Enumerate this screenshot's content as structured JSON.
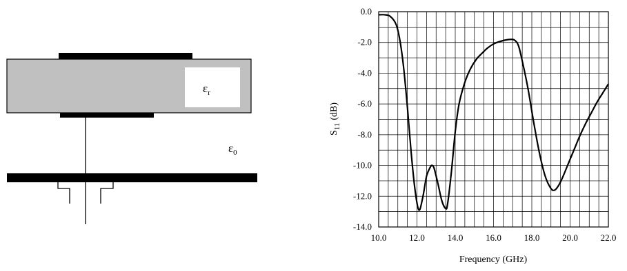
{
  "diagram": {
    "patch_permittivity_symbol": "ε",
    "patch_permittivity_subscript": "r",
    "free_space_symbol": "ε",
    "free_space_subscript": "0",
    "substrate_color": "#c0c0c0",
    "conductor_color": "#000000"
  },
  "chart_data": {
    "type": "line",
    "title": "",
    "xlabel": "Frequency (GHz)",
    "ylabel_main": "S",
    "ylabel_sub": "11",
    "ylabel_unit": "(dB)",
    "xlim": [
      10.0,
      22.0
    ],
    "ylim": [
      -14.0,
      0.0
    ],
    "xticks": [
      10.0,
      12.0,
      14.0,
      16.0,
      18.0,
      20.0,
      22.0
    ],
    "xtick_labels": [
      "10.0",
      "12.0",
      "14.0",
      "16.0",
      "18.0",
      "20.0",
      "22.0"
    ],
    "yticks": [
      0.0,
      -2.0,
      -4.0,
      -6.0,
      -8.0,
      -10.0,
      -12.0,
      -14.0
    ],
    "ytick_labels": [
      "0.0",
      "-2.0",
      "-4.0",
      "-6.0",
      "-8.0",
      "-10.0",
      "-12.0",
      "-14.0"
    ],
    "grid": true,
    "grid_minor_x": 0.5,
    "grid_minor_y": 1.0,
    "line_color": "#000000",
    "series": [
      {
        "x": [
          10.0,
          10.3,
          10.6,
          10.9,
          11.1,
          11.3,
          11.5,
          11.7,
          11.9,
          12.1,
          12.3,
          12.5,
          12.7,
          12.8,
          12.9,
          13.1,
          13.3,
          13.5,
          13.6,
          13.8,
          14.0,
          14.2,
          14.5,
          14.8,
          15.1,
          15.4,
          15.7,
          16.0,
          16.3,
          16.6,
          16.9,
          17.1,
          17.3,
          17.5,
          17.8,
          18.1,
          18.4,
          18.7,
          19.0,
          19.2,
          19.4,
          19.6,
          19.9,
          20.2,
          20.5,
          20.8,
          21.1,
          21.4,
          21.7,
          22.0
        ],
        "values": [
          -0.2,
          -0.2,
          -0.3,
          -0.8,
          -1.8,
          -3.6,
          -6.2,
          -9.2,
          -11.6,
          -12.9,
          -12.1,
          -10.7,
          -10.1,
          -10.0,
          -10.2,
          -11.2,
          -12.3,
          -12.8,
          -12.5,
          -10.4,
          -7.8,
          -6.0,
          -4.6,
          -3.7,
          -3.1,
          -2.7,
          -2.35,
          -2.1,
          -1.95,
          -1.85,
          -1.8,
          -1.85,
          -2.2,
          -3.2,
          -5.0,
          -7.2,
          -9.2,
          -10.7,
          -11.5,
          -11.6,
          -11.3,
          -10.8,
          -9.9,
          -9.0,
          -8.1,
          -7.3,
          -6.6,
          -5.9,
          -5.3,
          -4.7
        ]
      }
    ]
  }
}
